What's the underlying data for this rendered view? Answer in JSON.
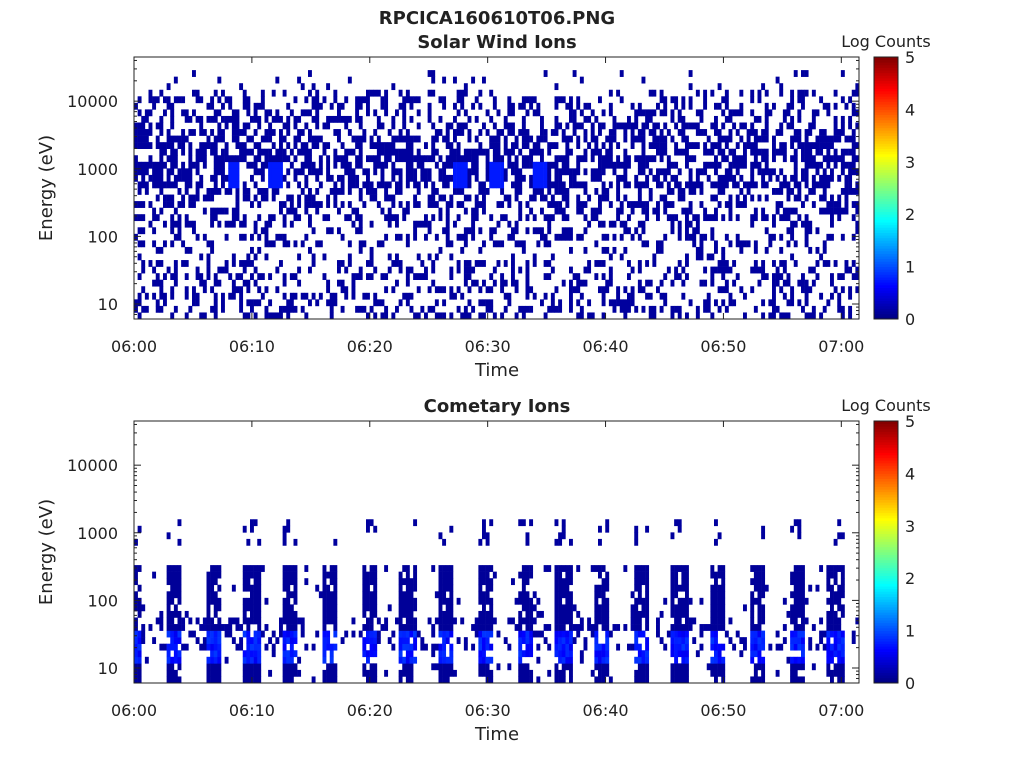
{
  "figure": {
    "title": "RPCICA160610T06.PNG"
  },
  "colors": {
    "colormap": [
      "#00007f",
      "#0000ff",
      "#007fff",
      "#00ffff",
      "#7fff7f",
      "#ffff00",
      "#ff7f00",
      "#ff0000",
      "#7f0000"
    ],
    "axis": "#222222"
  },
  "chart_data": [
    {
      "type": "heatmap",
      "title": "Solar Wind Ions",
      "xlabel": "Time",
      "ylabel": "Energy (eV)",
      "x_range": [
        "06:00",
        "07:01"
      ],
      "x_ticks": [
        "06:00",
        "06:10",
        "06:20",
        "06:30",
        "06:40",
        "06:50",
        "07:00"
      ],
      "y_scale": "log",
      "y_range": [
        6,
        45000
      ],
      "y_ticks": [
        10,
        100,
        1000,
        10000
      ],
      "y_tick_labels": [
        "10",
        "100",
        "1000",
        "10000"
      ],
      "colorbar": {
        "label": "Log Counts",
        "range": [
          0,
          5
        ],
        "ticks": [
          "0",
          "1",
          "2",
          "3",
          "4",
          "5"
        ]
      },
      "pattern": "sparse low counts (~0-0.5) from ~40 eV to ~15000 eV, densest near 1000 eV; peaks ~0.8 near 800 eV at 06:08, 06:12, 06:28, 06:34; patchy counts below 40 eV"
    },
    {
      "type": "heatmap",
      "title": "Cometary Ions",
      "xlabel": "Time",
      "ylabel": "Energy (eV)",
      "x_range": [
        "06:00",
        "07:01"
      ],
      "x_ticks": [
        "06:00",
        "06:10",
        "06:20",
        "06:30",
        "06:40",
        "06:50",
        "07:00"
      ],
      "y_scale": "log",
      "y_range": [
        6,
        45000
      ],
      "y_ticks": [
        10,
        100,
        1000,
        10000
      ],
      "y_tick_labels": [
        "10",
        "100",
        "1000",
        "10000"
      ],
      "colorbar": {
        "label": "Log Counts",
        "range": [
          0,
          5
        ],
        "ticks": [
          "0",
          "1",
          "2",
          "3",
          "4",
          "5"
        ]
      },
      "pattern": "periodic bursts roughly every 3.3 min between ~6 and ~300 eV with peaks up to ~1 log count near 20 eV; occasional blocks near 1000 eV"
    }
  ]
}
